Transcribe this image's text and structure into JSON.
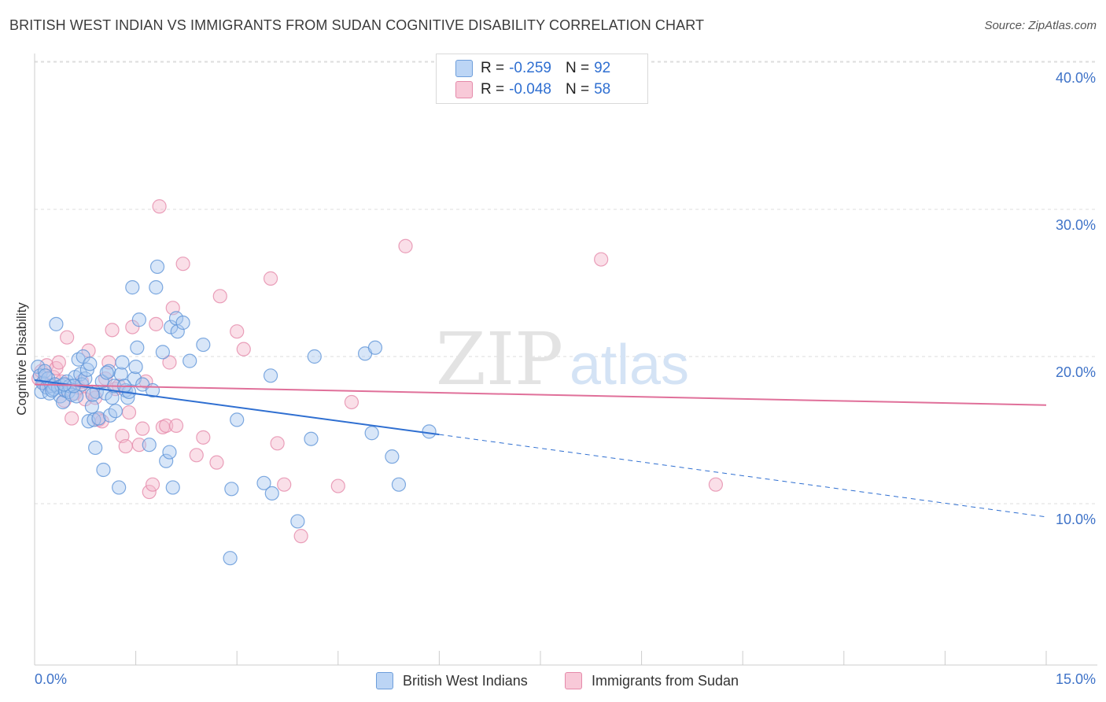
{
  "header": {
    "title": "BRITISH WEST INDIAN VS IMMIGRANTS FROM SUDAN COGNITIVE DISABILITY CORRELATION CHART",
    "source": "Source: ZipAtlas.com"
  },
  "watermark": {
    "zip": "ZIP",
    "atlas": "atlas"
  },
  "legend": {
    "rows": [
      {
        "r_label": "R =",
        "r_value": "-0.259",
        "n_label": "N =",
        "n_value": "92"
      },
      {
        "r_label": "R =",
        "r_value": "-0.048",
        "n_label": "N =",
        "n_value": "58"
      }
    ]
  },
  "colors": {
    "blue_fill": "#a8c8f0",
    "blue_stroke": "#5f95d8",
    "blue_line": "#2f6fd1",
    "pink_fill": "#f5b7cb",
    "pink_stroke": "#e58aaa",
    "pink_line": "#e0709a",
    "tick_label": "#3f73c8",
    "grid": "#dddddd"
  },
  "chart_data": {
    "type": "scatter",
    "title": "BRITISH WEST INDIAN VS IMMIGRANTS FROM SUDAN COGNITIVE DISABILITY CORRELATION CHART",
    "xlabel": "",
    "ylabel": "Cognitive Disability",
    "xlim": [
      0,
      15
    ],
    "ylim": [
      0,
      40
    ],
    "x_tick_labels": [
      "0.0%",
      "15.0%"
    ],
    "y_tick_labels": [
      "10.0%",
      "20.0%",
      "30.0%",
      "40.0%"
    ],
    "y_ticks": [
      10,
      20,
      30,
      40
    ],
    "grid": true,
    "legend_position": "bottom",
    "series": [
      {
        "name": "British West Indians",
        "R": -0.259,
        "N": 92,
        "trend": {
          "x": [
            0,
            6
          ],
          "y": [
            18.4,
            14.7
          ],
          "dashed_to": [
            15,
            9.1
          ]
        },
        "points": [
          [
            0.05,
            19.3
          ],
          [
            0.08,
            18.7
          ],
          [
            0.1,
            17.6
          ],
          [
            0.12,
            18.2
          ],
          [
            0.15,
            19.0
          ],
          [
            0.18,
            17.9
          ],
          [
            0.2,
            18.5
          ],
          [
            0.22,
            17.5
          ],
          [
            0.25,
            18.0
          ],
          [
            0.28,
            17.8
          ],
          [
            0.3,
            18.1
          ],
          [
            0.32,
            22.2
          ],
          [
            0.35,
            17.9
          ],
          [
            0.38,
            17.3
          ],
          [
            0.4,
            18.0
          ],
          [
            0.42,
            16.9
          ],
          [
            0.45,
            17.7
          ],
          [
            0.48,
            18.3
          ],
          [
            0.5,
            17.6
          ],
          [
            0.52,
            18.0
          ],
          [
            0.55,
            17.4
          ],
          [
            0.6,
            18.6
          ],
          [
            0.62,
            17.3
          ],
          [
            0.65,
            19.8
          ],
          [
            0.68,
            18.8
          ],
          [
            0.7,
            18.1
          ],
          [
            0.72,
            20.0
          ],
          [
            0.75,
            18.5
          ],
          [
            0.78,
            19.1
          ],
          [
            0.8,
            15.6
          ],
          [
            0.82,
            19.5
          ],
          [
            0.85,
            16.6
          ],
          [
            0.88,
            15.7
          ],
          [
            0.9,
            13.8
          ],
          [
            0.92,
            17.6
          ],
          [
            0.95,
            15.8
          ],
          [
            1.0,
            18.3
          ],
          [
            1.02,
            12.3
          ],
          [
            1.05,
            17.5
          ],
          [
            1.1,
            19.0
          ],
          [
            1.12,
            16.0
          ],
          [
            1.15,
            17.2
          ],
          [
            1.18,
            18.0
          ],
          [
            1.2,
            16.3
          ],
          [
            1.25,
            11.1
          ],
          [
            1.28,
            18.8
          ],
          [
            1.3,
            19.6
          ],
          [
            1.35,
            17.7
          ],
          [
            1.38,
            17.2
          ],
          [
            1.4,
            17.6
          ],
          [
            1.45,
            24.7
          ],
          [
            1.48,
            18.5
          ],
          [
            1.5,
            19.3
          ],
          [
            1.52,
            20.6
          ],
          [
            1.55,
            22.5
          ],
          [
            1.6,
            18.1
          ],
          [
            1.7,
            14.0
          ],
          [
            1.75,
            17.7
          ],
          [
            1.8,
            24.7
          ],
          [
            1.82,
            26.1
          ],
          [
            1.9,
            20.3
          ],
          [
            1.95,
            12.9
          ],
          [
            2.0,
            13.5
          ],
          [
            2.02,
            22.0
          ],
          [
            2.05,
            11.1
          ],
          [
            2.1,
            22.6
          ],
          [
            2.12,
            21.7
          ],
          [
            2.2,
            22.3
          ],
          [
            2.3,
            19.7
          ],
          [
            2.5,
            20.8
          ],
          [
            2.9,
            6.3
          ],
          [
            2.92,
            11.0
          ],
          [
            3.0,
            15.7
          ],
          [
            3.4,
            11.4
          ],
          [
            3.5,
            18.7
          ],
          [
            3.52,
            10.7
          ],
          [
            3.9,
            8.8
          ],
          [
            4.1,
            14.4
          ],
          [
            4.15,
            20.0
          ],
          [
            4.9,
            20.2
          ],
          [
            5.0,
            14.8
          ],
          [
            5.05,
            20.6
          ],
          [
            5.3,
            13.2
          ],
          [
            5.4,
            11.3
          ],
          [
            5.85,
            14.9
          ],
          [
            0.16,
            18.7
          ],
          [
            0.26,
            17.7
          ],
          [
            0.58,
            18.0
          ],
          [
            0.86,
            17.4
          ],
          [
            1.07,
            18.9
          ],
          [
            1.33,
            18.0
          ],
          [
            0.44,
            18.1
          ]
        ]
      },
      {
        "name": "Immigrants from Sudan",
        "R": -0.048,
        "N": 58,
        "trend": {
          "x": [
            0,
            15
          ],
          "y": [
            18.1,
            16.7
          ]
        },
        "points": [
          [
            0.06,
            18.5
          ],
          [
            0.1,
            19.0
          ],
          [
            0.14,
            18.2
          ],
          [
            0.18,
            19.4
          ],
          [
            0.22,
            18.0
          ],
          [
            0.28,
            18.6
          ],
          [
            0.32,
            19.2
          ],
          [
            0.36,
            19.6
          ],
          [
            0.4,
            18.3
          ],
          [
            0.44,
            17.0
          ],
          [
            0.48,
            21.3
          ],
          [
            0.55,
            15.8
          ],
          [
            0.6,
            17.5
          ],
          [
            0.65,
            17.9
          ],
          [
            0.7,
            18.3
          ],
          [
            0.75,
            17.1
          ],
          [
            0.8,
            20.4
          ],
          [
            0.85,
            17.6
          ],
          [
            0.9,
            17.2
          ],
          [
            0.95,
            15.7
          ],
          [
            1.0,
            15.6
          ],
          [
            1.05,
            18.5
          ],
          [
            1.1,
            19.6
          ],
          [
            1.15,
            21.8
          ],
          [
            1.2,
            17.8
          ],
          [
            1.25,
            18.0
          ],
          [
            1.3,
            14.6
          ],
          [
            1.35,
            13.9
          ],
          [
            1.4,
            16.2
          ],
          [
            1.45,
            22.0
          ],
          [
            1.55,
            14.0
          ],
          [
            1.6,
            15.1
          ],
          [
            1.65,
            18.3
          ],
          [
            1.7,
            10.8
          ],
          [
            1.75,
            11.3
          ],
          [
            1.8,
            22.2
          ],
          [
            1.85,
            30.2
          ],
          [
            1.9,
            15.2
          ],
          [
            1.95,
            15.3
          ],
          [
            2.0,
            19.6
          ],
          [
            2.05,
            23.3
          ],
          [
            2.1,
            15.3
          ],
          [
            2.2,
            26.3
          ],
          [
            2.4,
            13.3
          ],
          [
            2.5,
            14.5
          ],
          [
            2.7,
            12.8
          ],
          [
            2.75,
            24.1
          ],
          [
            3.0,
            21.7
          ],
          [
            3.1,
            20.5
          ],
          [
            3.5,
            25.3
          ],
          [
            3.6,
            14.1
          ],
          [
            3.7,
            11.3
          ],
          [
            3.95,
            7.8
          ],
          [
            4.5,
            11.2
          ],
          [
            4.7,
            16.9
          ],
          [
            5.5,
            27.5
          ],
          [
            8.4,
            26.6
          ],
          [
            10.1,
            11.3
          ]
        ]
      }
    ]
  }
}
